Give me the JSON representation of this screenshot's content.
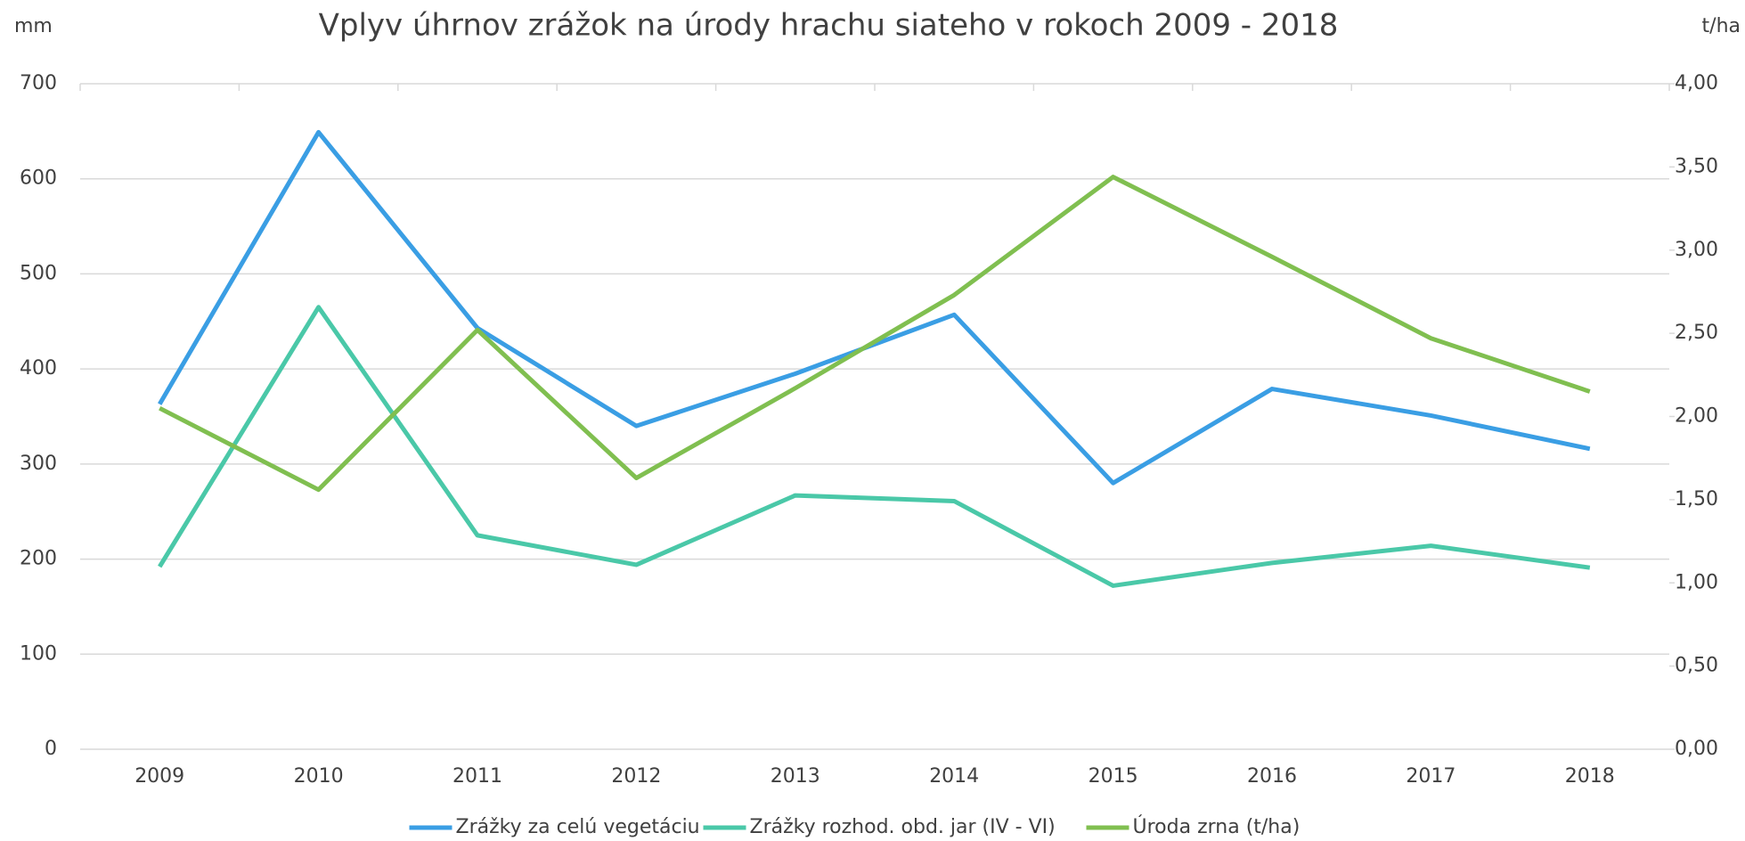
{
  "chart_data": {
    "type": "line",
    "title": "Vplyv úhrnov zrážok na úrody hrachu siateho v rokoch 2009 - 2018",
    "ylabel": "mm",
    "y2label": "t/ha",
    "categories": [
      "2009",
      "2010",
      "2011",
      "2012",
      "2013",
      "2014",
      "2015",
      "2016",
      "2017",
      "2018"
    ],
    "series": [
      {
        "name": "Zrážky za celú vegetáciu",
        "color": "#3a9ee4",
        "values": [
          363,
          649,
          443,
          340,
          395,
          457,
          280,
          379,
          351,
          316
        ]
      },
      {
        "name": "Zrážky rozhod. obd. jar (IV - VI)",
        "color": "#4ac8a8",
        "values": [
          192,
          465,
          225,
          194,
          267,
          261,
          172,
          196,
          214,
          191
        ]
      },
      {
        "name": "Úroda zrna (t/ha)",
        "color": "#80bf50",
        "axis": "y2",
        "values": [
          2.05,
          1.56,
          2.52,
          1.63,
          2.17,
          2.73,
          3.44,
          2.96,
          2.47,
          2.15
        ]
      }
    ],
    "ylim": [
      0,
      700
    ],
    "yticks": [
      0,
      100,
      200,
      300,
      400,
      500,
      600,
      700
    ],
    "y2lim": [
      0,
      4
    ],
    "y2ticks": [
      {
        "value": 0,
        "label": "0,00"
      },
      {
        "value": 0.5,
        "label": "0,50"
      },
      {
        "value": 1,
        "label": "1,00"
      },
      {
        "value": 1.5,
        "label": "1,50"
      },
      {
        "value": 2,
        "label": "2,00"
      },
      {
        "value": 2.5,
        "label": "2,50"
      },
      {
        "value": 3,
        "label": "3,00"
      },
      {
        "value": 3.5,
        "label": "3,50"
      },
      {
        "value": 4,
        "label": "4,00"
      }
    ],
    "grid": true,
    "legend": "bottom"
  }
}
